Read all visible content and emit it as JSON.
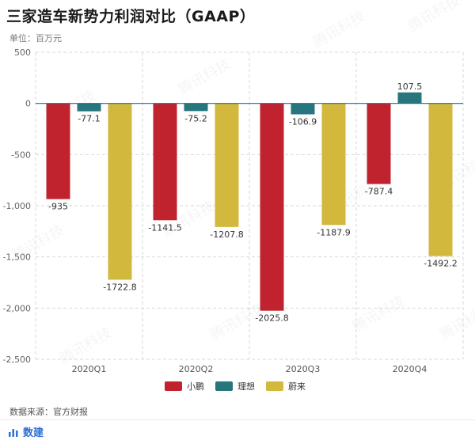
{
  "page": {
    "title": "三家造车新势力利润对比（GAAP）",
    "unit": "单位：百万元",
    "source": "数据来源：官方财报",
    "footer_label": "数建",
    "watermark": "腾讯科技"
  },
  "colors": {
    "xiaopeng": "#c0232e",
    "lixiang": "#27757d",
    "nio": "#d3b83e",
    "grid": "#d9d9d9",
    "zero_line": "#1b6f8a"
  },
  "chart_data": {
    "type": "bar",
    "title": "三家造车新势力利润对比（GAAP）",
    "ylabel": "单位：百万元",
    "categories": [
      "2020Q1",
      "2020Q2",
      "2020Q3",
      "2020Q4"
    ],
    "series": [
      {
        "name": "小鹏",
        "values": [
          -935,
          -1141.5,
          -2025.8,
          -787.4
        ],
        "color": "#c0232e"
      },
      {
        "name": "理想",
        "values": [
          -77.1,
          -75.2,
          -106.9,
          107.5
        ],
        "color": "#27757d"
      },
      {
        "name": "蔚来",
        "values": [
          -1722.8,
          -1207.8,
          -1187.9,
          -1492.2
        ],
        "color": "#d3b83e"
      }
    ],
    "ylim": [
      -2500,
      500
    ],
    "yticks": [
      500,
      0,
      -500,
      -1000,
      -1500,
      -2000,
      -2500
    ],
    "ytick_labels": [
      "500",
      "0",
      "-500",
      "-1,000",
      "-1,500",
      "-2,000",
      "-2,500"
    ],
    "data_labels": [
      [
        "-935",
        "-1141.5",
        "-2025.8",
        "-787.4"
      ],
      [
        "-77.1",
        "-75.2",
        "-106.9",
        "107.5"
      ],
      [
        "-1722.8",
        "-1207.8",
        "-1187.9",
        "-1492.2"
      ]
    ],
    "grid": true,
    "legend_position": "bottom"
  }
}
